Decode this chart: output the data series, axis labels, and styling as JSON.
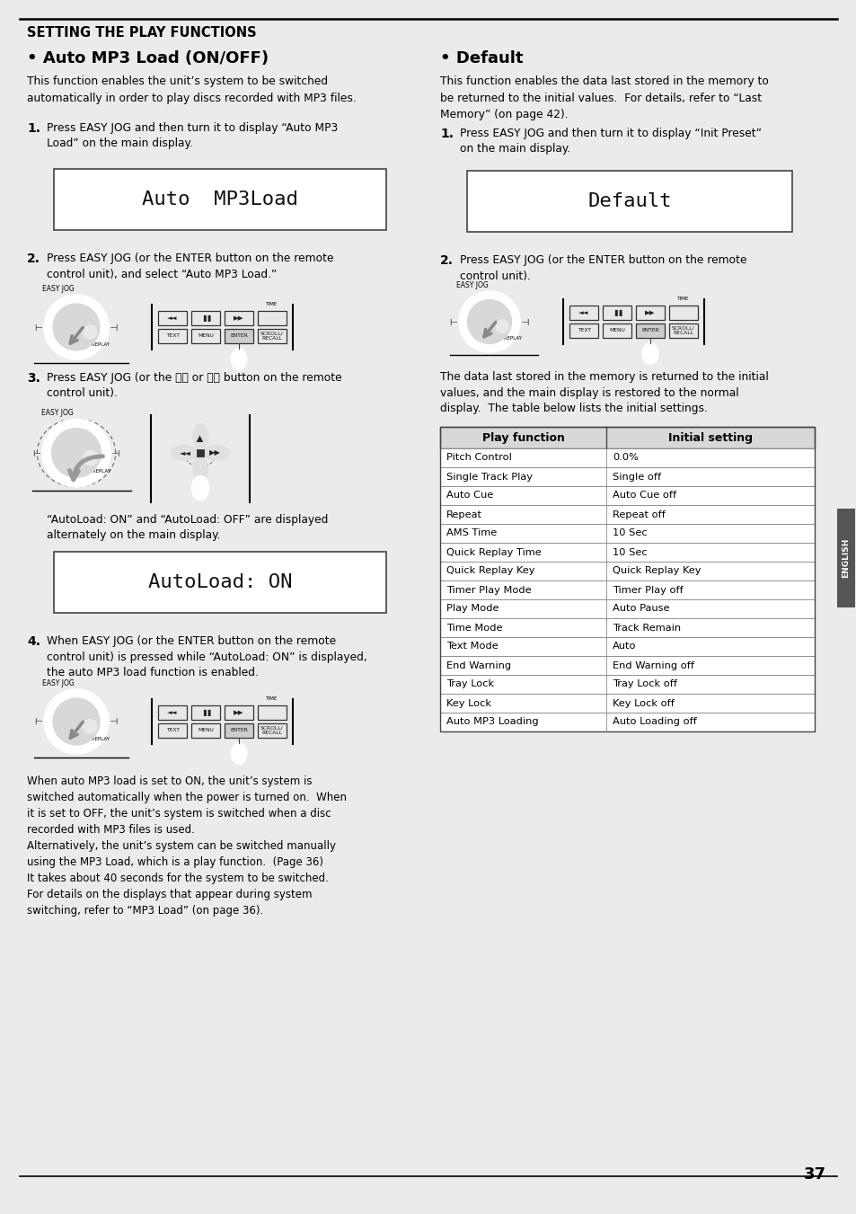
{
  "bg_color": "#ebebeb",
  "title": "SETTING THE PLAY FUNCTIONS",
  "page_number": "37",
  "left_section": {
    "heading": "• Auto MP3 Load (ON/OFF)",
    "intro": "This function enables the unit’s system to be switched\nautomatically in order to play discs recorded with MP3 files.",
    "step1_label": "1.",
    "step1_text": "Press EASY JOG and then turn it to display “Auto MP3\nLoad” on the main display.",
    "display1_text": "Auto  MP3Load",
    "step2_label": "2.",
    "step2_text": "Press EASY JOG (or the ENTER button on the remote\ncontrol unit), and select “Auto MP3 Load.”",
    "step3_label": "3.",
    "step3_text": "Press EASY JOG (or the ⏮⏮ or ⏭⏭ button on the remote\ncontrol unit).",
    "step3_note": "“AutoLoad: ON” and “AutoLoad: OFF” are displayed\nalternately on the main display.",
    "display2_text": "AutoLoad: ON",
    "step4_label": "4.",
    "step4_text": "When EASY JOG (or the ENTER button on the remote\ncontrol unit) is pressed while “AutoLoad: ON” is displayed,\nthe auto MP3 load function is enabled.",
    "footer_text": "When auto MP3 load is set to ON, the unit’s system is\nswitched automatically when the power is turned on.  When\nit is set to OFF, the unit’s system is switched when a disc\nrecorded with MP3 files is used.\nAlternatively, the unit’s system can be switched manually\nusing the MP3 Load, which is a play function.  (Page 36)\nIt takes about 40 seconds for the system to be switched.\nFor details on the displays that appear during system\nswitching, refer to “MP3 Load” (on page 36)."
  },
  "right_section": {
    "heading": "• Default",
    "intro": "This function enables the data last stored in the memory to\nbe returned to the initial values.  For details, refer to “Last\nMemory” (on page 42).",
    "step1_label": "1.",
    "step1_text": "Press EASY JOG and then turn it to display “Init Preset”\non the main display.",
    "display1_text": "Default",
    "step2_label": "2.",
    "step2_text": "Press EASY JOG (or the ENTER button on the remote\ncontrol unit).",
    "after_text": "The data last stored in the memory is returned to the initial\nvalues, and the main display is restored to the normal\ndisplay.  The table below lists the initial settings.",
    "table_header": [
      "Play function",
      "Initial setting"
    ],
    "table_rows": [
      [
        "Pitch Control",
        "0.0%"
      ],
      [
        "Single Track Play",
        "Single off"
      ],
      [
        "Auto Cue",
        "Auto Cue off"
      ],
      [
        "Repeat",
        "Repeat off"
      ],
      [
        "AMS Time",
        "10 Sec"
      ],
      [
        "Quick Replay Time",
        "10 Sec"
      ],
      [
        "Quick Replay Key",
        "Quick Replay Key"
      ],
      [
        "Timer Play Mode",
        "Timer Play off"
      ],
      [
        "Play Mode",
        "Auto Pause"
      ],
      [
        "Time Mode",
        "Track Remain"
      ],
      [
        "Text Mode",
        "Auto"
      ],
      [
        "End Warning",
        "End Warning off"
      ],
      [
        "Tray Lock",
        "Tray Lock off"
      ],
      [
        "Key Lock",
        "Key Lock off"
      ],
      [
        "Auto MP3 Loading",
        "Auto Loading off"
      ]
    ]
  },
  "english_tab": "ENGLISH"
}
